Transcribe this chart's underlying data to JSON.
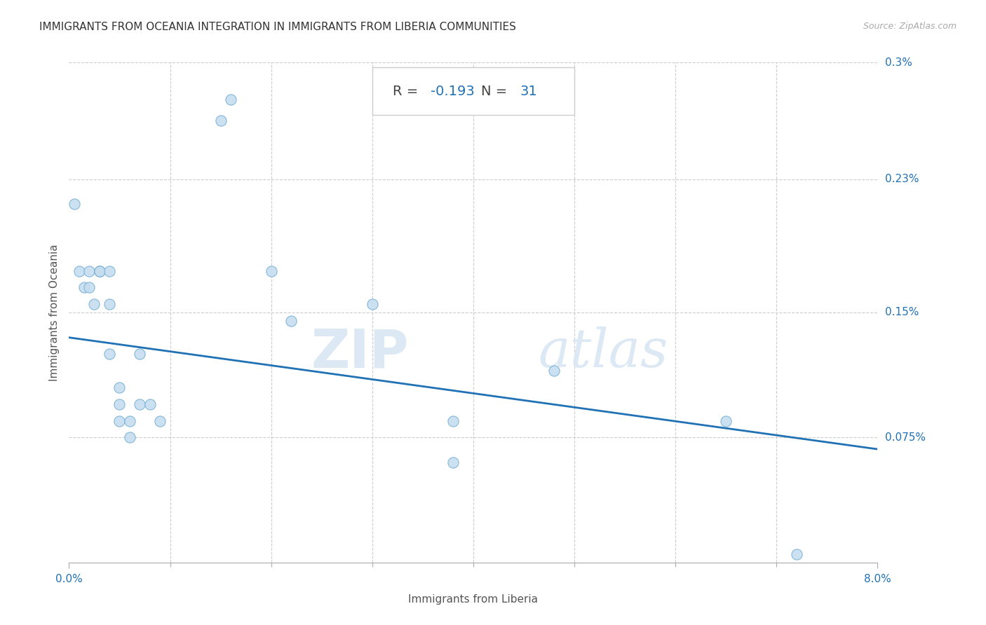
{
  "title": "IMMIGRANTS FROM OCEANIA INTEGRATION IN IMMIGRANTS FROM LIBERIA COMMUNITIES",
  "source": "Source: ZipAtlas.com",
  "xlabel": "Immigrants from Liberia",
  "ylabel": "Immigrants from Oceania",
  "R": -0.193,
  "N": 31,
  "xlim": [
    0.0,
    0.08
  ],
  "ylim": [
    0.0,
    0.003
  ],
  "ytick_labels": [
    "0.075%",
    "0.15%",
    "0.23%",
    "0.3%"
  ],
  "ytick_vals": [
    0.00075,
    0.0015,
    0.0023,
    0.003
  ],
  "scatter_color": "#c6ddf0",
  "scatter_edge_color": "#7ab3d4",
  "line_color": "#2171b5",
  "background_color": "#ffffff",
  "scatter_x": [
    0.0005,
    0.001,
    0.0015,
    0.002,
    0.002,
    0.0025,
    0.003,
    0.003,
    0.003,
    0.004,
    0.004,
    0.004,
    0.005,
    0.005,
    0.005,
    0.006,
    0.006,
    0.007,
    0.007,
    0.008,
    0.009,
    0.015,
    0.016,
    0.02,
    0.022,
    0.03,
    0.038,
    0.038,
    0.048,
    0.065,
    0.072
  ],
  "scatter_y": [
    0.00215,
    0.00175,
    0.00165,
    0.00165,
    0.00175,
    0.00155,
    0.00175,
    0.00175,
    0.00175,
    0.00155,
    0.00175,
    0.00125,
    0.00105,
    0.00095,
    0.00085,
    0.00085,
    0.00075,
    0.00125,
    0.00095,
    0.00095,
    0.00085,
    0.00265,
    0.00278,
    0.00175,
    0.00145,
    0.00155,
    0.00085,
    0.0006,
    0.00115,
    0.00085,
    5e-05
  ],
  "watermark_zip": "ZIP",
  "watermark_atlas": "atlas",
  "x_line_start": 0.0,
  "y_line_start": 0.00135,
  "x_line_end": 0.08,
  "y_line_end": 0.00068
}
